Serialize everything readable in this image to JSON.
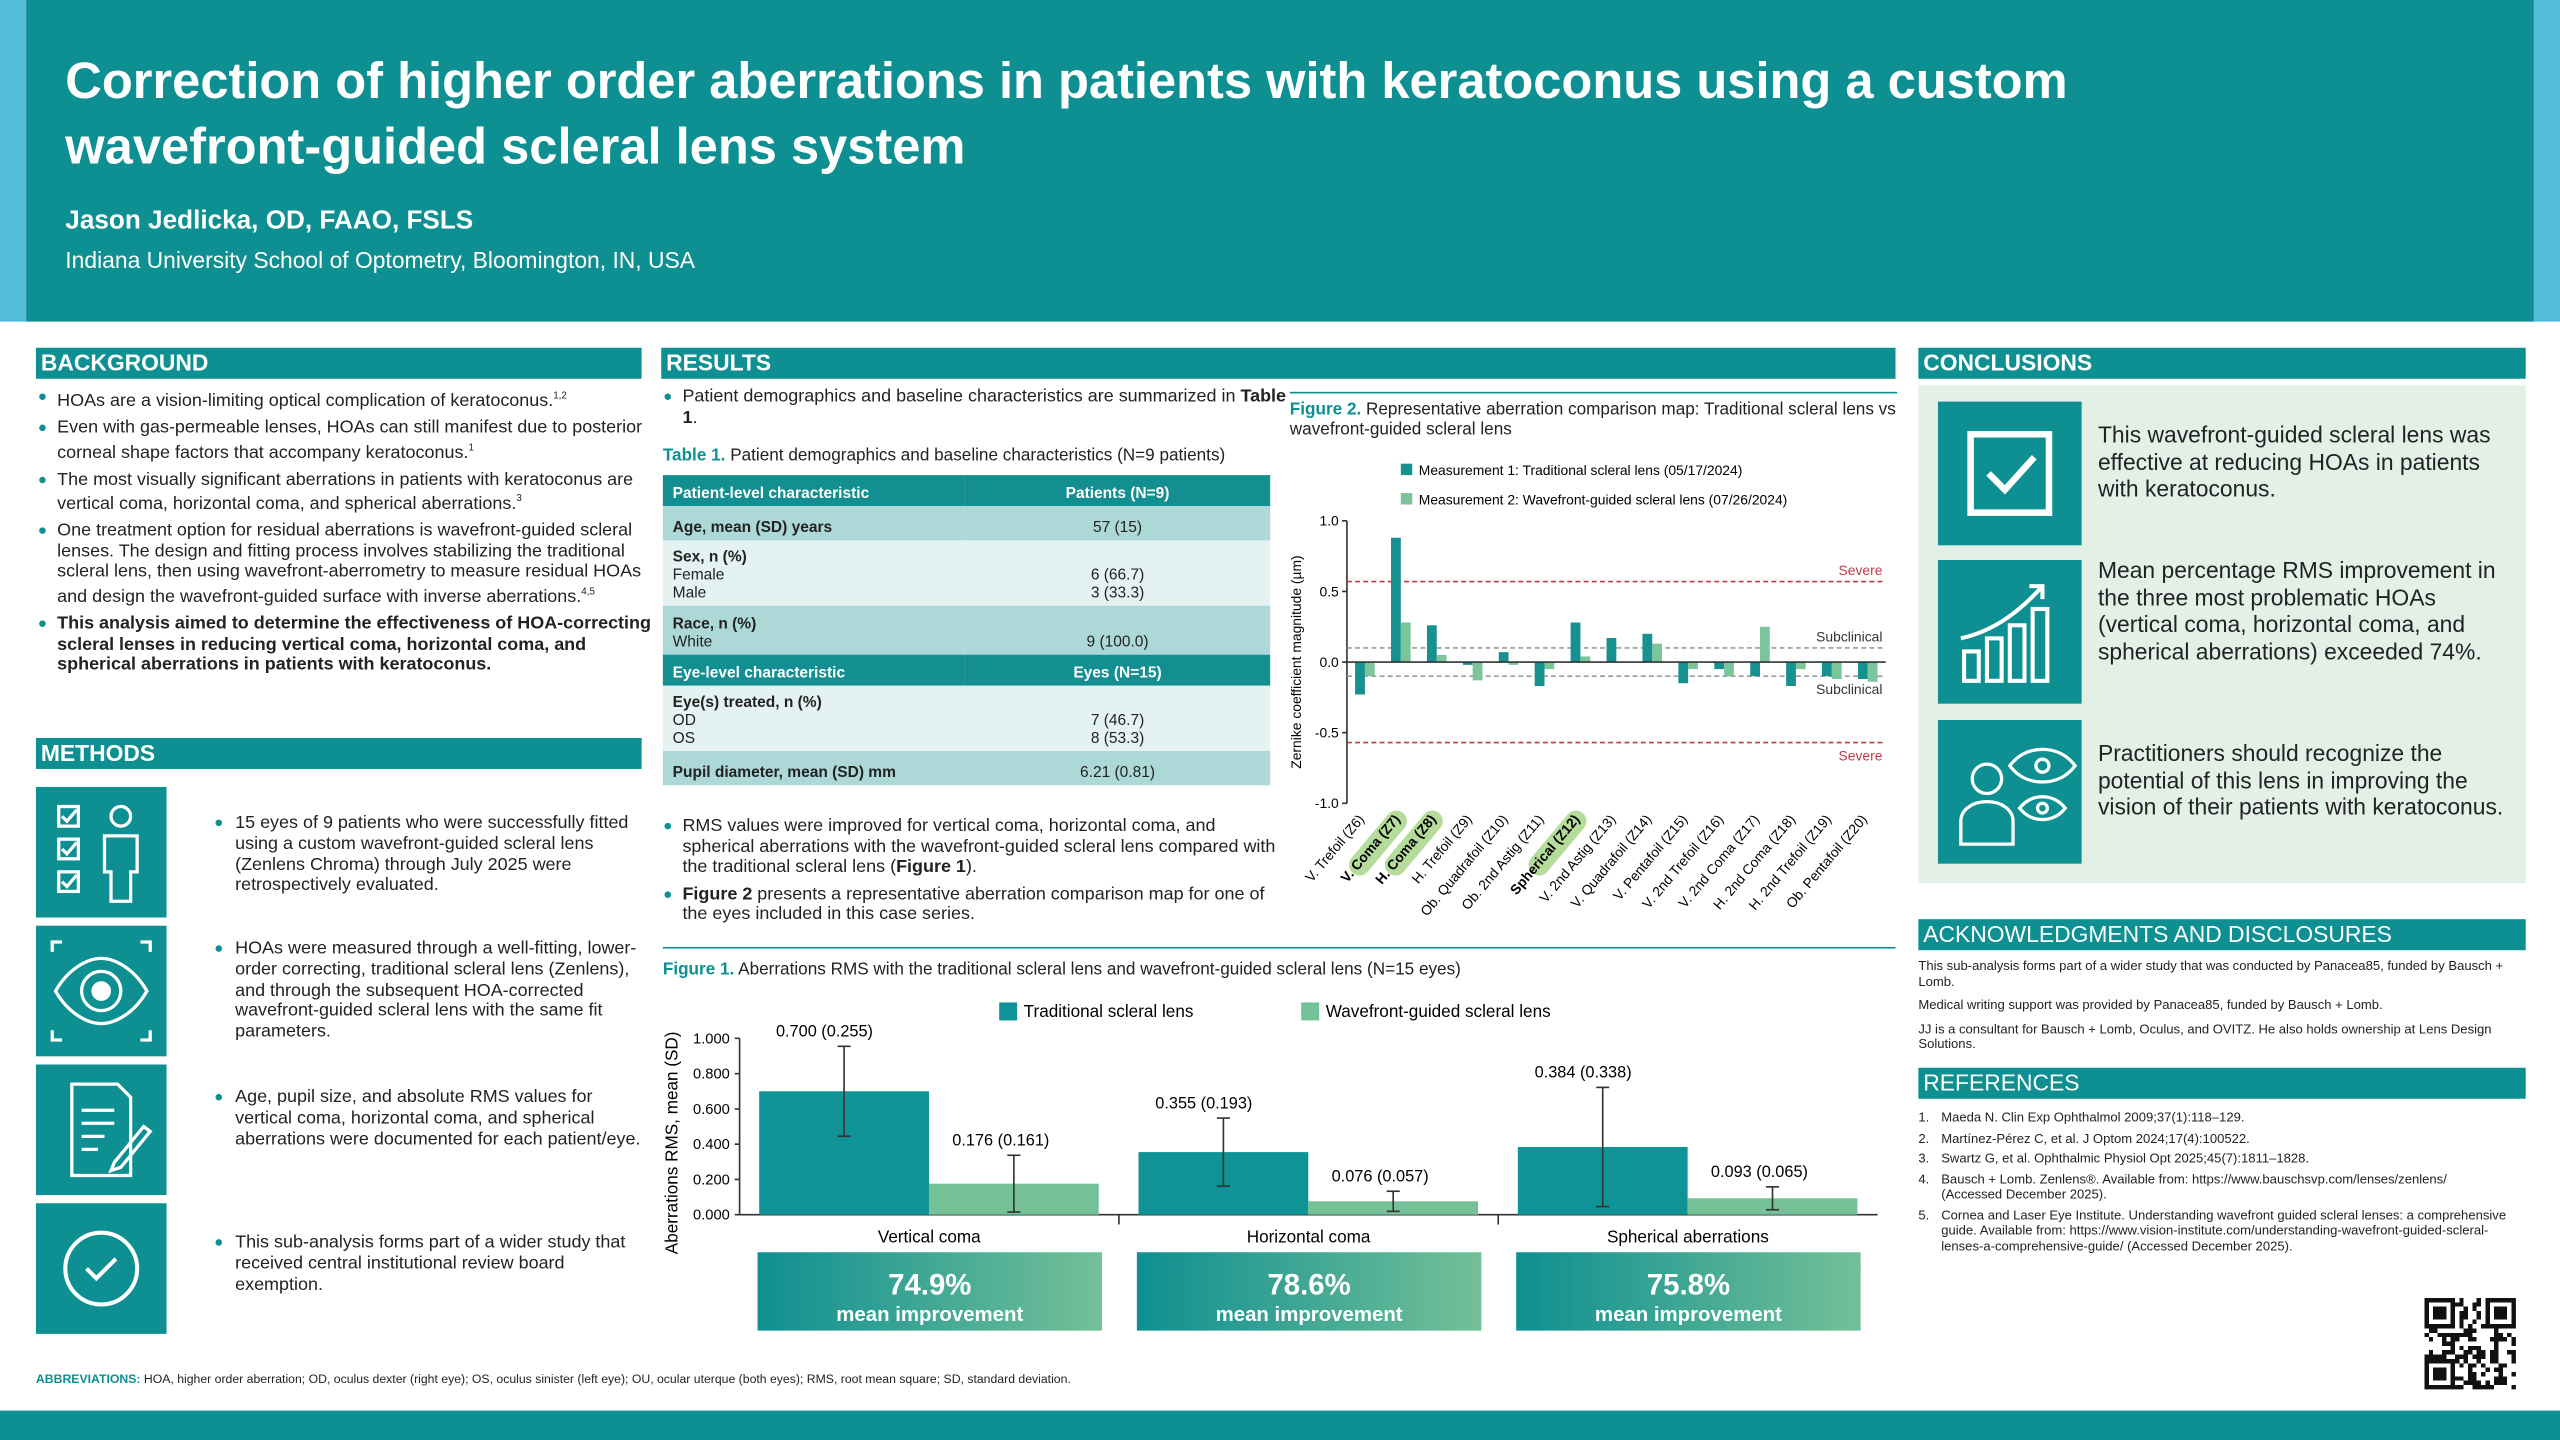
{
  "header": {
    "title": "Correction of higher order aberrations in patients with keratoconus using a custom wavefront-guided scleral lens system",
    "author": "Jason Jedlicka, OD, FAAO, FSLS",
    "affiliation": "Indiana University School of Optometry, Bloomington, IN, USA"
  },
  "background": {
    "heading": "BACKGROUND",
    "bullets": [
      {
        "text": "HOAs are a vision-limiting optical complication of keratoconus.",
        "ref": "1,2"
      },
      {
        "text": "Even with gas-permeable lenses, HOAs can still manifest due to posterior corneal shape factors that accompany keratoconus.",
        "ref": "1"
      },
      {
        "text": "The most visually significant aberrations in patients with keratoconus are vertical coma, horizontal coma, and spherical aberrations.",
        "ref": "3"
      },
      {
        "text": "One treatment option for residual aberrations is wavefront-guided scleral lenses. The design and fitting process involves stabilizing the traditional scleral lens, then using wavefront-aberrometry to measure residual HOAs and design the wavefront-guided surface with inverse aberrations.",
        "ref": "4,5"
      },
      {
        "text": "This analysis aimed to determine the effectiveness of HOA-correcting scleral lenses in reducing vertical coma, horizontal coma, and spherical aberrations in patients with keratoconus."
      }
    ]
  },
  "methods": {
    "heading": "METHODS",
    "items": [
      "15 eyes of 9 patients who were successfully fitted using a custom wavefront-guided scleral lens (Zenlens Chroma) through July 2025 were retrospectively evaluated.",
      "HOAs were measured through a well-fitting, lower-order correcting, traditional scleral lens (Zenlens), and through the subsequent HOA-corrected wavefront-guided scleral lens with the same fit parameters.",
      "Age, pupil size, and absolute RMS values for vertical coma, horizontal coma, and spherical aberrations were documented for each patient/eye.",
      "This sub-analysis forms part of a wider study that received central institutional review board exemption."
    ]
  },
  "results": {
    "heading": "RESULTS",
    "intro": [
      "Patient demographics and baseline characteristics are summarized in ",
      "Table 1",
      "."
    ],
    "bullets": [
      [
        "RMS values were improved for vertical coma, horizontal coma, and spherical aberrations with the wavefront-guided scleral lens compared with the traditional scleral lens (",
        "Figure 1",
        ")."
      ],
      [
        "Figure 2",
        " presents a representative aberration comparison map for one of the eyes included in this case series."
      ]
    ]
  },
  "table": {
    "label": "Table 1.",
    "caption": "Patient demographics and baseline characteristics (N=9 patients)",
    "sections": [
      {
        "header": [
          "Patient-level characteristic",
          "Patients (N=9)"
        ],
        "rows": [
          {
            "label": "Age, mean (SD) years",
            "value": "57 (15)"
          },
          {
            "label": "Sex, n (%)",
            "sub": [
              [
                "Female",
                "6 (66.7)"
              ],
              [
                "Male",
                "3 (33.3)"
              ]
            ]
          },
          {
            "label": "Race, n (%)",
            "sub": [
              [
                "White",
                "9 (100.0)"
              ]
            ]
          }
        ]
      },
      {
        "header": [
          "Eye-level characteristic",
          "Eyes (N=15)"
        ],
        "rows": [
          {
            "label": "Eye(s) treated, n (%)",
            "sub": [
              [
                "OD",
                "7 (46.7)"
              ],
              [
                "OS",
                "8 (53.3)"
              ]
            ]
          },
          {
            "label": "Pupil diameter, mean (SD) mm",
            "value": "6.21 (0.81)"
          }
        ]
      }
    ]
  },
  "chart_data": [
    {
      "type": "bar",
      "label": "Figure 1.",
      "title": "Aberrations RMS with the traditional scleral lens and wavefront-guided scleral lens (N=15 eyes)",
      "ylabel": "Aberrations RMS, mean (SD)",
      "categories": [
        "Vertical coma",
        "Horizontal coma",
        "Spherical aberrations"
      ],
      "series": [
        {
          "name": "Traditional scleral lens",
          "color": "#0f9396",
          "values": [
            0.7,
            0.355,
            0.384
          ],
          "errors": [
            0.255,
            0.193,
            0.338
          ],
          "value_labels": [
            "0.700 (0.255)",
            "0.355 (0.193)",
            "0.384 (0.338)"
          ]
        },
        {
          "name": "Wavefront-guided scleral lens",
          "color": "#74c097",
          "values": [
            0.176,
            0.076,
            0.093
          ],
          "errors": [
            0.161,
            0.057,
            0.065
          ],
          "value_labels": [
            "0.176 (0.161)",
            "0.076 (0.057)",
            "0.093 (0.065)"
          ]
        }
      ],
      "ylim": [
        0,
        1
      ],
      "yticks": [
        {
          "value": 0,
          "label": "0.000"
        },
        {
          "value": 0.2,
          "label": "0.200"
        },
        {
          "value": 0.4,
          "label": "0.400"
        },
        {
          "value": 0.6,
          "label": "0.600"
        },
        {
          "value": 0.8,
          "label": "0.800"
        },
        {
          "value": 1,
          "label": "1.000"
        }
      ],
      "improvements": [
        "74.9%",
        "78.6%",
        "75.8%"
      ],
      "improvement_caption": "mean improvement"
    },
    {
      "type": "bar",
      "label": "Figure 2.",
      "title": "Representative aberration comparison map: Traditional scleral lens vs wavefront-guided scleral lens",
      "ylabel": "Zernike coefficient magnitude (µm)",
      "categories": [
        "V. Trefoil (Z6)",
        "V. Coma (Z7)",
        "H. Coma (Z8)",
        "H. Trefoil (Z9)",
        "Ob. Quadrafoil (Z10)",
        "Ob. 2nd Astig (Z11)",
        "Spherical (Z12)",
        "V. 2nd Astig (Z13)",
        "V. Quadrafoil (Z14)",
        "V. Pentafoil (Z15)",
        "V. 2nd Trefoil (Z16)",
        "V. 2nd Coma (Z17)",
        "H. 2nd Coma (Z18)",
        "H. 2nd Trefoil (Z19)",
        "Ob. Pentafoil (Z20)"
      ],
      "highlight": [
        1,
        2,
        6
      ],
      "series": [
        {
          "name": "Measurement 1: Traditional scleral lens (05/17/2024)",
          "color": "#16918f",
          "values": [
            -0.23,
            0.88,
            0.26,
            -0.02,
            0.07,
            -0.17,
            0.28,
            0.17,
            0.2,
            -0.15,
            -0.05,
            -0.1,
            -0.17,
            -0.1,
            -0.12
          ]
        },
        {
          "name": "Measurement 2: Wavefront-guided scleral lens (07/26/2024)",
          "color": "#7cc59b",
          "values": [
            -0.1,
            0.28,
            0.05,
            -0.13,
            -0.02,
            -0.05,
            0.04,
            0.0,
            0.13,
            -0.05,
            -0.1,
            0.25,
            -0.05,
            -0.12,
            -0.14
          ]
        }
      ],
      "ylim": [
        -1,
        1
      ],
      "yticks": [
        {
          "value": 1,
          "label": "1.0"
        },
        0.5,
        {
          "value": 0,
          "label": "0.0"
        },
        -0.5,
        {
          "value": -1,
          "label": "-1.0"
        }
      ],
      "ref_lines": [
        {
          "value": 0.57,
          "label": "Severe",
          "color": "#c0394b"
        },
        {
          "value": 0.1,
          "label": "Subclinical",
          "color": "#9a9a9a"
        },
        {
          "value": -0.1,
          "label": "Subclinical",
          "color": "#9a9a9a"
        },
        {
          "value": -0.57,
          "label": "Severe",
          "color": "#c0394b"
        }
      ]
    }
  ],
  "conclusions": {
    "heading": "CONCLUSIONS",
    "items": [
      "This wavefront-guided scleral lens was effective at reducing HOAs in patients with keratoconus.",
      "Mean percentage RMS improvement in the three most problematic HOAs (vertical coma, horizontal coma, and spherical aberrations) exceeded 74%.",
      "Practitioners should recognize the potential of this lens in improving the vision of their patients with keratoconus."
    ]
  },
  "acknowledgments": {
    "heading": "ACKNOWLEDGMENTS AND DISCLOSURES",
    "items": [
      "This sub-analysis forms part of a wider study that was conducted by Panacea85, funded by Bausch + Lomb.",
      "Medical writing support was provided by Panacea85, funded by Bausch + Lomb.",
      "JJ is a consultant for Bausch + Lomb, Oculus, and OVITZ. He also holds ownership at Lens Design Solutions."
    ]
  },
  "references": {
    "heading": "REFERENCES",
    "items": [
      {
        "n": "1.",
        "text": "Maeda N. Clin Exp Ophthalmol 2009;37(1):118–129."
      },
      {
        "n": "2.",
        "text": "Martínez-Pérez C, et al. J Optom 2024;17(4):100522."
      },
      {
        "n": "3.",
        "text": "Swartz G, et al. Ophthalmic Physiol Opt 2025;45(7):1811–1828."
      },
      {
        "n": "4.",
        "text": "Bausch + Lomb. Zenlens®. Available from: https://www.bauschsvp.com/lenses/zenlens/ (Accessed December 2025)."
      },
      {
        "n": "5.",
        "text": "Cornea and Laser Eye Institute. Understanding wavefront guided scleral lenses: a comprehensive guide. Available from: https://www.vision-institute.com/understanding-wavefront-guided-scleral-lenses-a-comprehensive-guide/ (Accessed December 2025)."
      }
    ]
  },
  "abbreviations": {
    "label": "ABBREVIATIONS:",
    "text": "HOA, higher order aberration; OD, oculus dexter (right eye); OS, oculus sinister (left eye); OU, ocular uterque (both eyes); RMS, root mean square; SD, standard deviation."
  }
}
